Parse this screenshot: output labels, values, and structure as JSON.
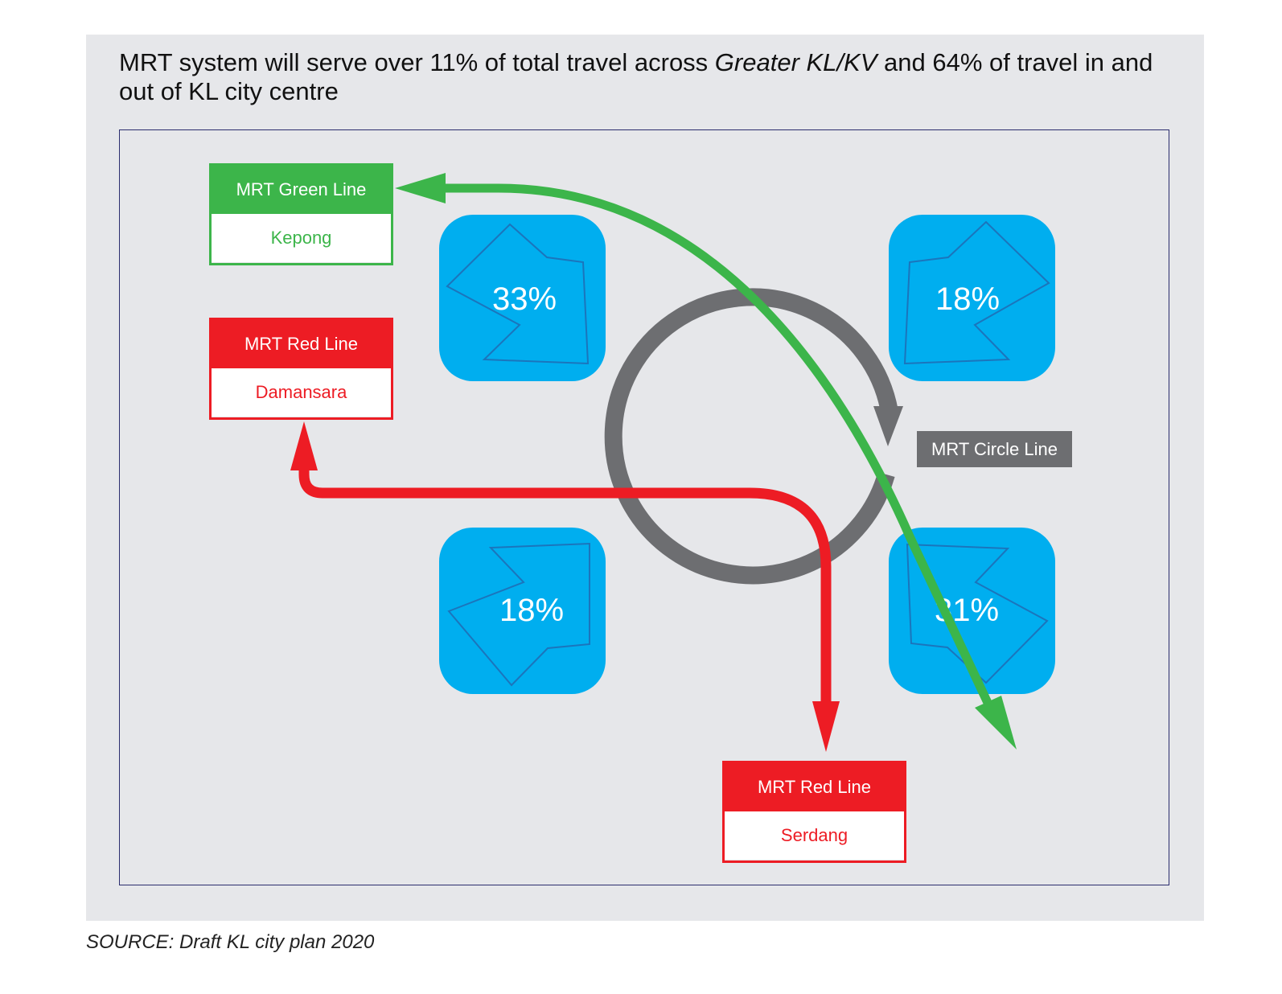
{
  "title": {
    "part1": "MRT system will serve over 11% of total travel across ",
    "italic": "Greater KL/KV",
    "part2": " and 64% of travel in and out of KL city centre"
  },
  "lines": {
    "green_kepong": {
      "line": "MRT Green Line",
      "station": "Kepong",
      "color": "#3cb54a"
    },
    "red_damansara": {
      "line": "MRT Red Line",
      "station": "Damansara",
      "color": "#ed1c24"
    },
    "red_serdang": {
      "line": "MRT Red Line",
      "station": "Serdang",
      "color": "#ed1c24"
    },
    "circle": {
      "line": "MRT Circle Line",
      "color": "#6d6e71"
    }
  },
  "quadrants": {
    "top_left": "33%",
    "top_right": "18%",
    "bottom_left": "18%",
    "bottom_right": "31%"
  },
  "colors": {
    "tile": "#00aeef",
    "tile_outline": "#1b75bc",
    "panel": "#e6e7ea"
  },
  "source": "SOURCE: Draft KL city plan 2020"
}
